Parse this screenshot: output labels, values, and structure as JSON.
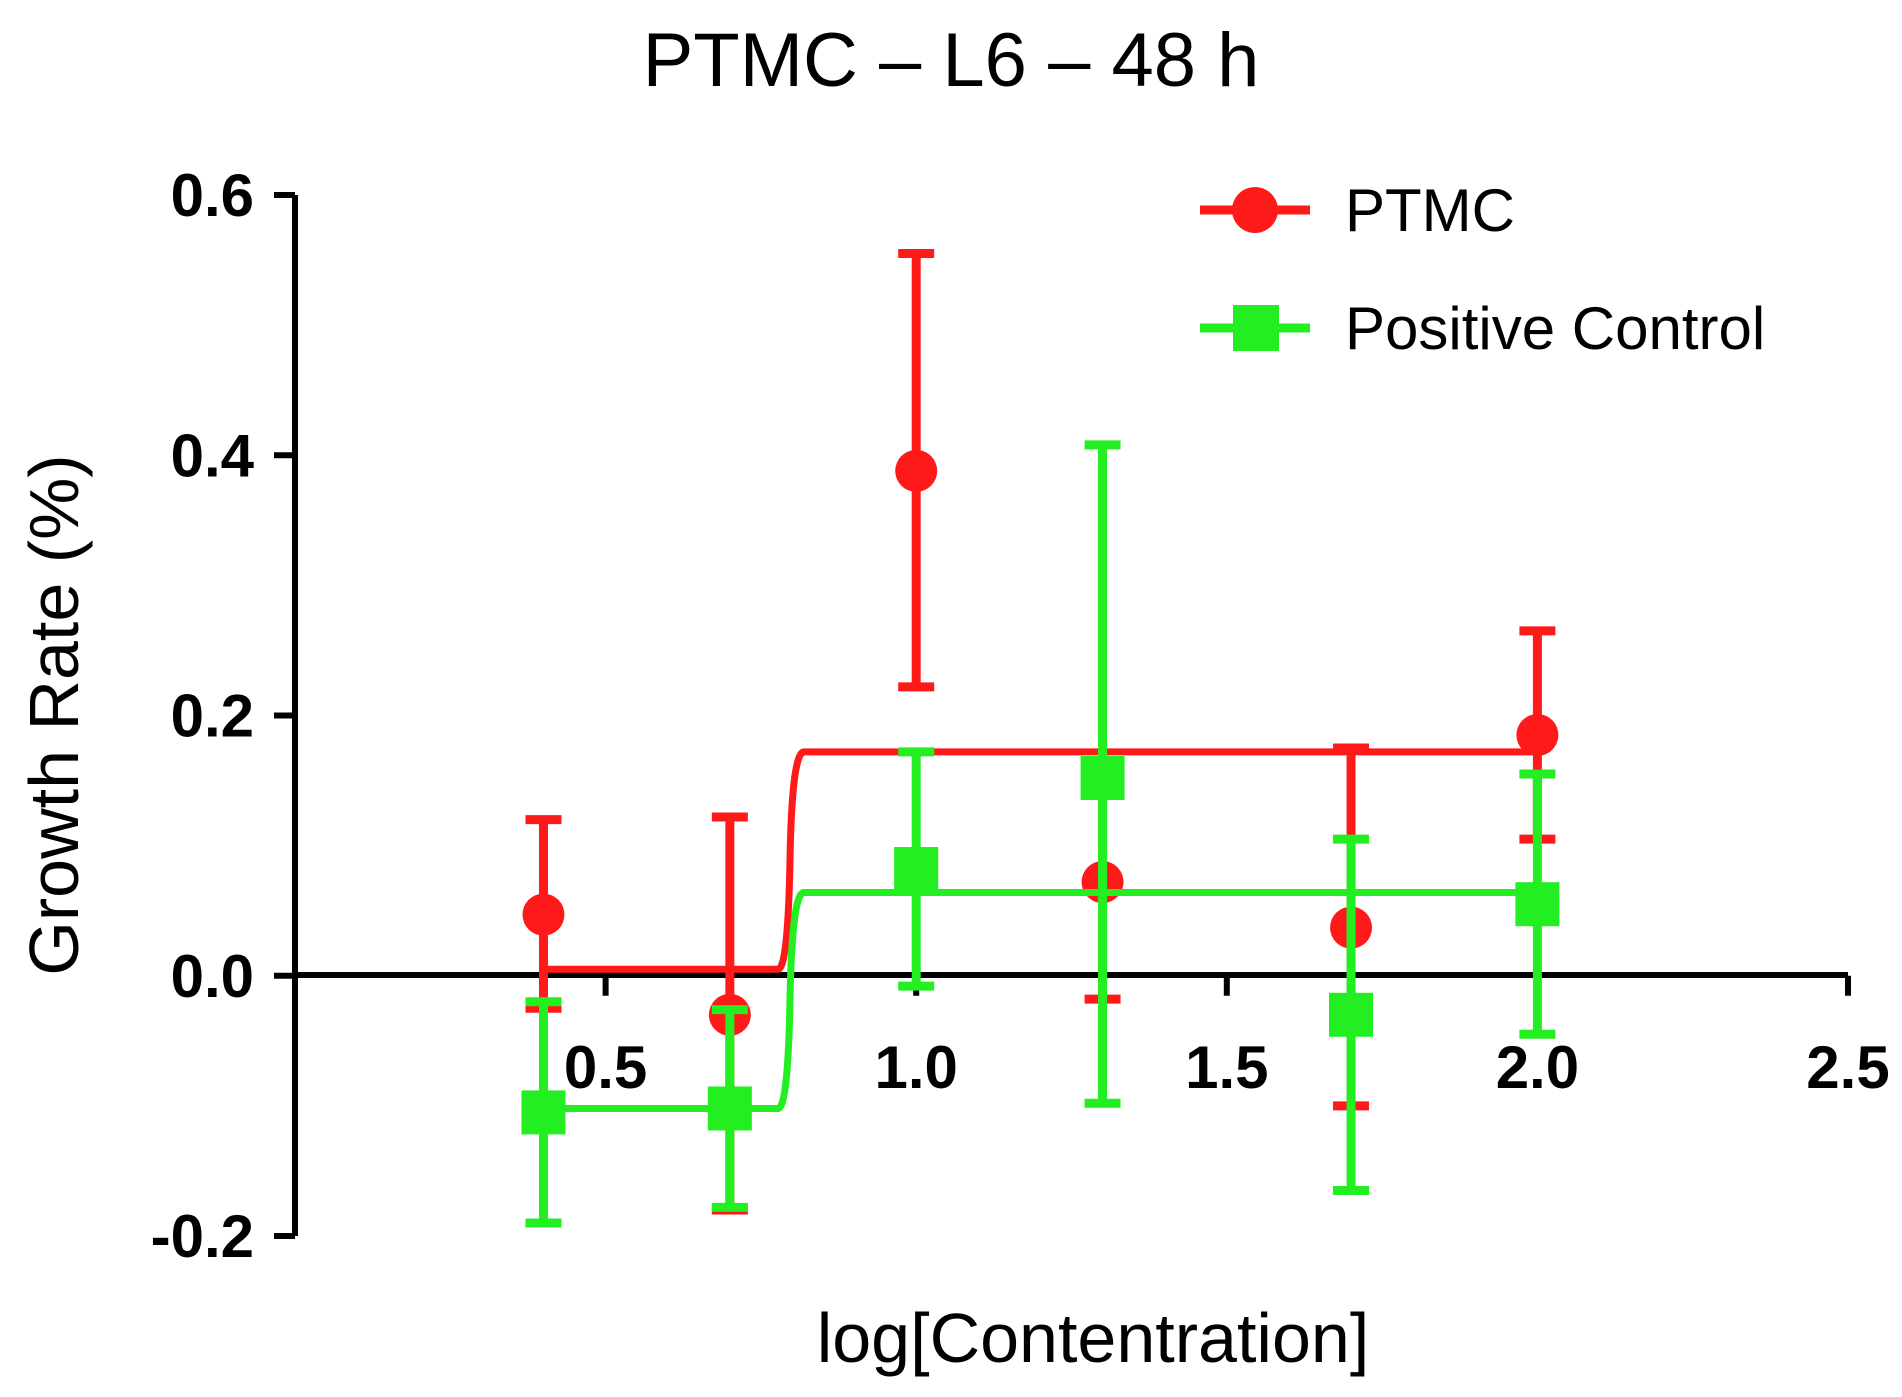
{
  "chart_data": {
    "type": "line",
    "title": "PTMC – L6 – 48 h",
    "xlabel": "log[Contentration]",
    "ylabel": "Growth Rate (%)",
    "xlim": [
      0.0,
      2.5
    ],
    "ylim": [
      -0.2,
      0.6
    ],
    "x_ticks": [
      0.5,
      1.0,
      1.5,
      2.0,
      2.5
    ],
    "x_tick_labels": [
      "0.5",
      "1.0",
      "1.5",
      "2.0",
      "2.5"
    ],
    "y_ticks": [
      -0.2,
      0.0,
      0.2,
      0.4,
      0.6
    ],
    "y_tick_labels": [
      "-0.2",
      "0.0",
      "0.2",
      "0.4",
      "0.6"
    ],
    "grid": false,
    "legend_position": "top-right",
    "series": [
      {
        "name": "PTMC",
        "color": "#ff1a1a",
        "marker": "circle",
        "points": [
          {
            "x": 0.4,
            "y": 0.047,
            "lo": -0.025,
            "hi": 0.12
          },
          {
            "x": 0.7,
            "y": -0.03,
            "lo": -0.18,
            "hi": 0.122
          },
          {
            "x": 1.0,
            "y": 0.388,
            "lo": 0.222,
            "hi": 0.555
          },
          {
            "x": 1.3,
            "y": 0.072,
            "lo": -0.018,
            "hi": 0.162
          },
          {
            "x": 1.7,
            "y": 0.037,
            "lo": -0.1,
            "hi": 0.175
          },
          {
            "x": 2.0,
            "y": 0.185,
            "lo": 0.105,
            "hi": 0.265
          }
        ],
        "fit": {
          "bottom": 0.005,
          "top": 0.172,
          "log_ec50": 0.8
        }
      },
      {
        "name": "Positive Control",
        "color": "#22ee22",
        "marker": "square",
        "points": [
          {
            "x": 0.4,
            "y": -0.105,
            "lo": -0.19,
            "hi": -0.02
          },
          {
            "x": 0.7,
            "y": -0.102,
            "lo": -0.178,
            "hi": -0.026
          },
          {
            "x": 1.0,
            "y": 0.082,
            "lo": -0.008,
            "hi": 0.172
          },
          {
            "x": 1.3,
            "y": 0.152,
            "lo": -0.098,
            "hi": 0.408
          },
          {
            "x": 1.7,
            "y": -0.03,
            "lo": -0.165,
            "hi": 0.105
          },
          {
            "x": 2.0,
            "y": 0.055,
            "lo": -0.045,
            "hi": 0.155
          }
        ],
        "fit": {
          "bottom": -0.102,
          "top": 0.064,
          "log_ec50": 0.8
        }
      }
    ]
  }
}
